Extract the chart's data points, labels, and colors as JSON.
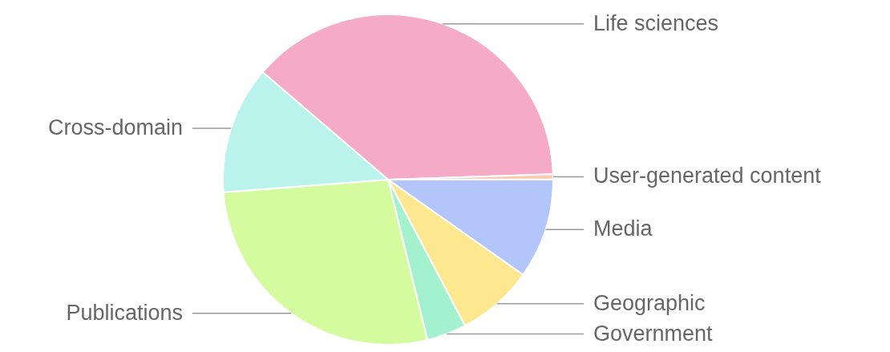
{
  "chart_data": {
    "type": "pie",
    "categories": [
      "Life sciences",
      "User-generated content",
      "Media",
      "Geographic",
      "Government",
      "Publications",
      "Cross-domain"
    ],
    "values": [
      38.2,
      0.5,
      9.8,
      7.5,
      3.9,
      27.6,
      12.5
    ],
    "colors": [
      "#f5abc5",
      "#fbc9ad",
      "#b3c6fb",
      "#fde88f",
      "#a3f1cd",
      "#d5fb9f",
      "#b9f3ec"
    ]
  }
}
